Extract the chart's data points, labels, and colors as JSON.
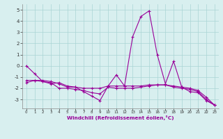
{
  "x": [
    0,
    1,
    2,
    3,
    4,
    5,
    6,
    7,
    8,
    9,
    10,
    11,
    12,
    13,
    14,
    15,
    16,
    17,
    18,
    19,
    20,
    21,
    22,
    23
  ],
  "line1": [
    0.0,
    -0.7,
    -1.4,
    -1.6,
    -1.5,
    -1.8,
    -1.9,
    -2.3,
    -2.7,
    -3.1,
    -1.8,
    -0.8,
    -1.8,
    2.6,
    4.4,
    4.9,
    1.0,
    -1.6,
    0.4,
    -1.9,
    -2.3,
    -2.4,
    -3.1,
    -3.5
  ],
  "line2": [
    -1.5,
    -1.3,
    -1.3,
    -1.4,
    -1.6,
    -1.9,
    -1.9,
    -2.0,
    -2.0,
    -2.0,
    -1.8,
    -1.8,
    -1.8,
    -1.8,
    -1.8,
    -1.7,
    -1.7,
    -1.7,
    -1.8,
    -1.9,
    -2.0,
    -2.2,
    -2.8,
    -3.5
  ],
  "line3": [
    -1.3,
    -1.3,
    -1.4,
    -1.5,
    -2.0,
    -2.0,
    -2.1,
    -2.2,
    -2.4,
    -2.5,
    -1.9,
    -2.0,
    -2.0,
    -2.0,
    -1.9,
    -1.8,
    -1.7,
    -1.7,
    -1.9,
    -2.0,
    -2.1,
    -2.3,
    -3.0,
    -3.5
  ],
  "line_color": "#990099",
  "bg_color": "#d8efef",
  "grid_color": "#aad4d4",
  "xlabel": "Windchill (Refroidissement éolien,°C)",
  "xlim": [
    -0.5,
    23.5
  ],
  "ylim": [
    -3.8,
    5.5
  ],
  "yticks": [
    -3,
    -2,
    -1,
    0,
    1,
    2,
    3,
    4,
    5
  ],
  "xticks": [
    0,
    1,
    2,
    3,
    4,
    5,
    6,
    7,
    8,
    9,
    10,
    11,
    12,
    13,
    14,
    15,
    16,
    17,
    18,
    19,
    20,
    21,
    22,
    23
  ]
}
